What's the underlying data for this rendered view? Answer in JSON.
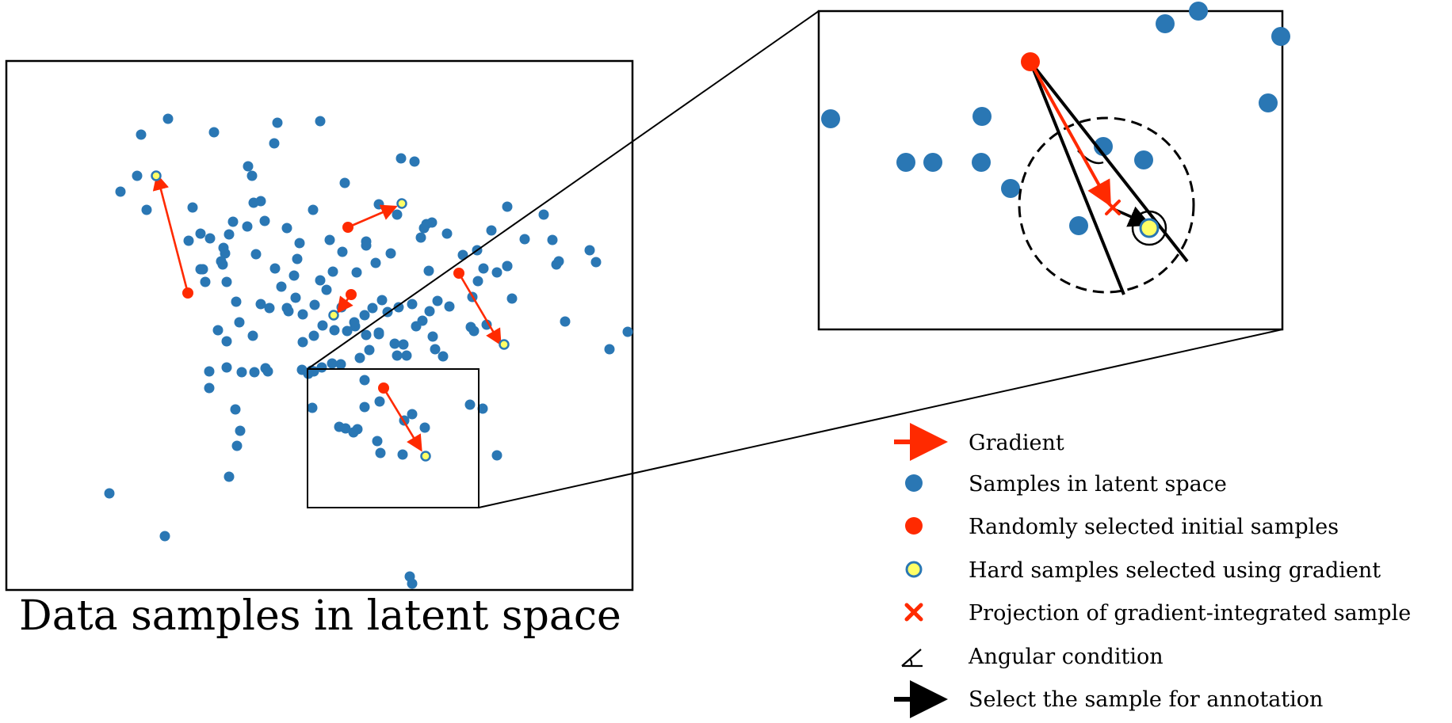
{
  "caption": "Data samples in latent space",
  "colors": {
    "sample": "#2a77b4",
    "initial": "#ff2a00",
    "hard_fill": "#ffff66",
    "hard_ring": "#2a77b4",
    "gradient": "#ff2a00",
    "select": "#000000",
    "frame": "#000000"
  },
  "legend": [
    {
      "icon": "gradient-arrow",
      "label": "Gradient"
    },
    {
      "icon": "blue-dot",
      "label": "Samples in latent space"
    },
    {
      "icon": "red-dot",
      "label": "Randomly selected initial samples"
    },
    {
      "icon": "hard-sample-dot",
      "label": "Hard samples selected using gradient"
    },
    {
      "icon": "red-cross",
      "label": "Projection of gradient-integrated sample"
    },
    {
      "icon": "angle-icon",
      "label": "Angular condition"
    },
    {
      "icon": "black-arrow",
      "label": "Select the sample for annotation"
    }
  ]
}
